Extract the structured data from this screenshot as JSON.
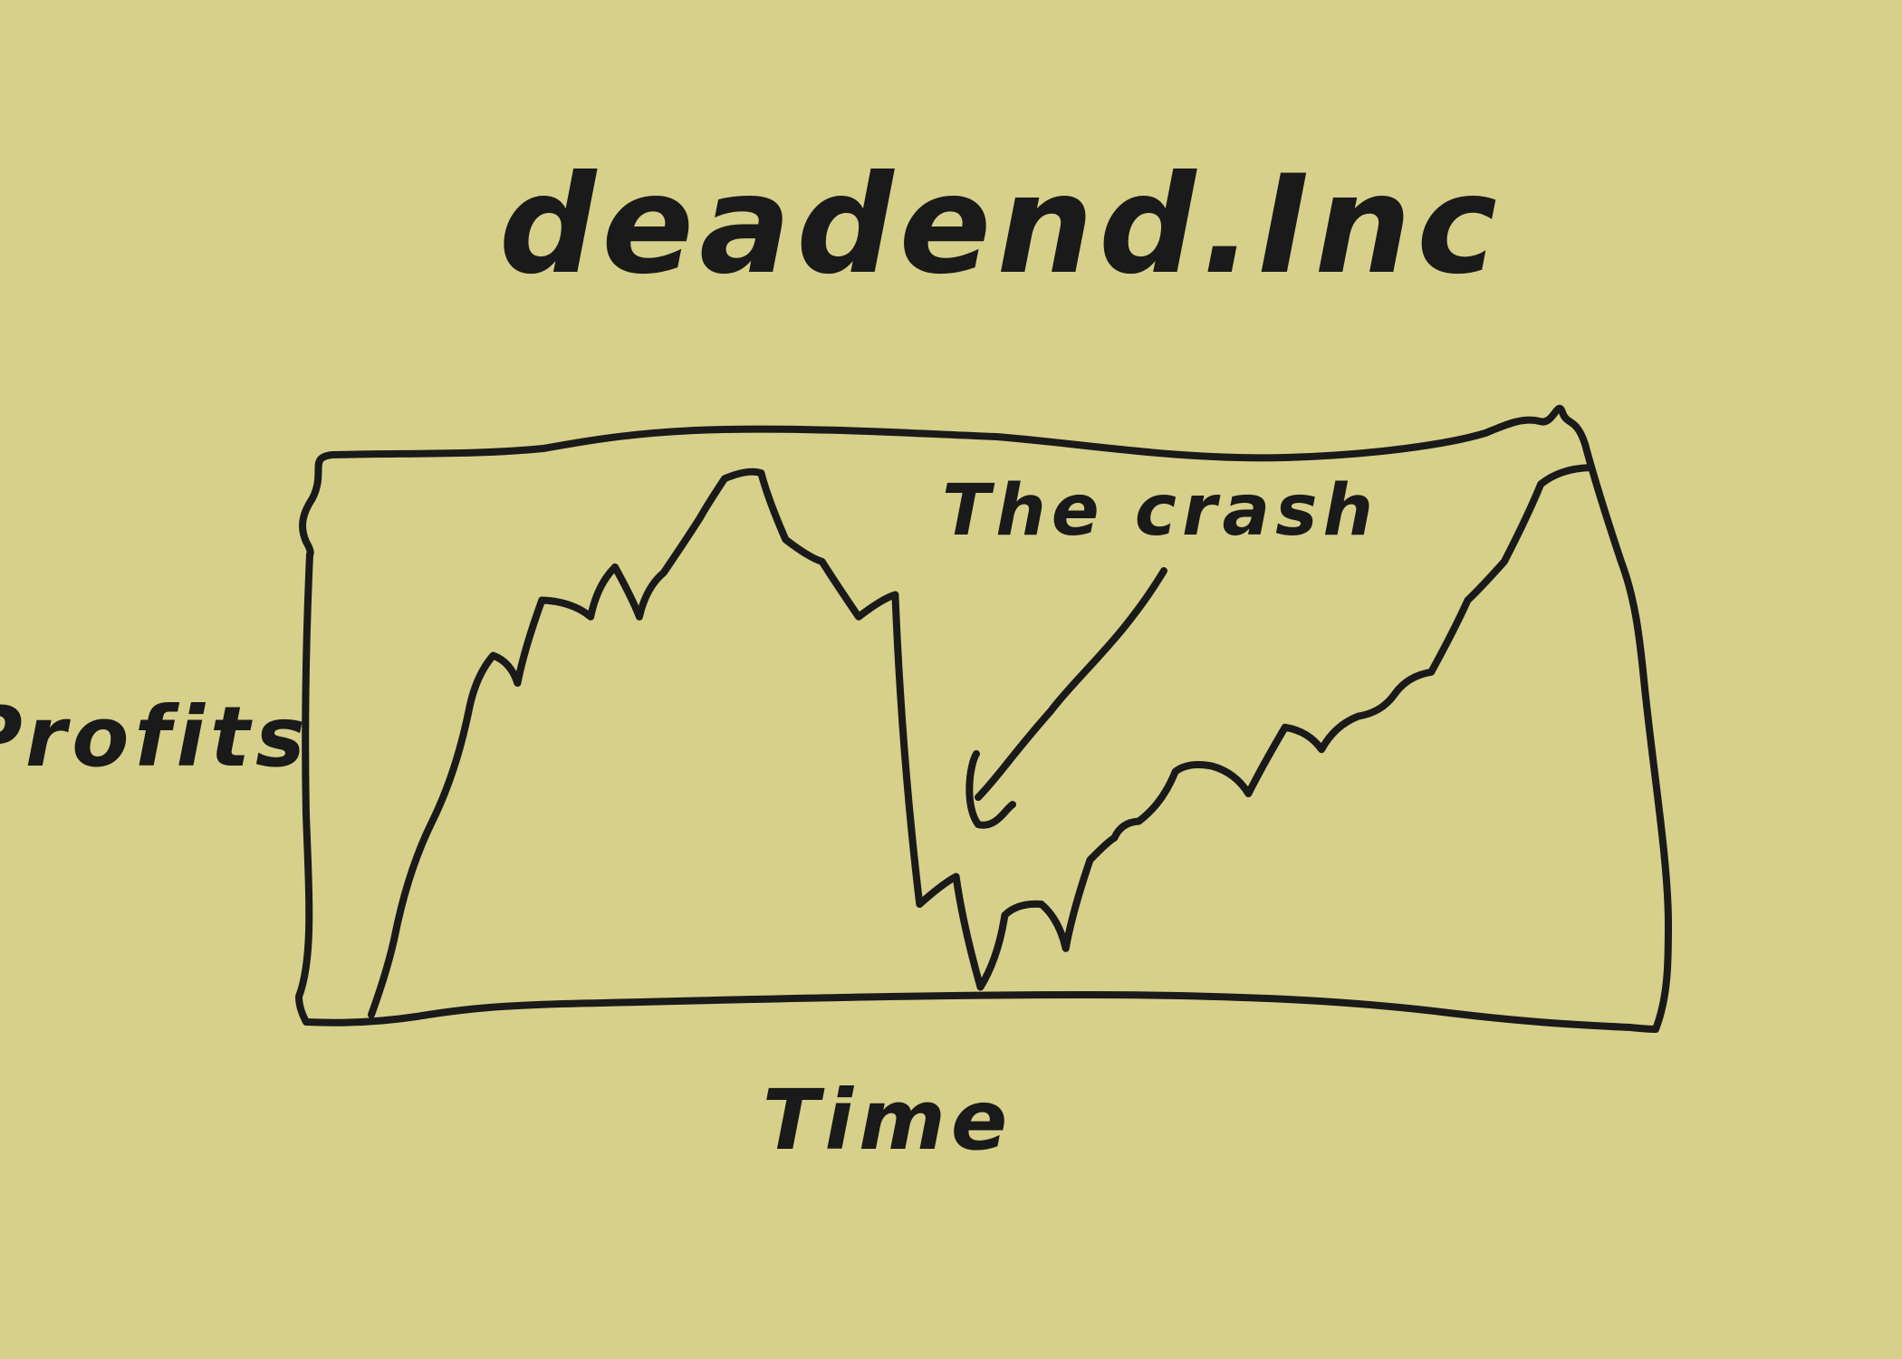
{
  "chart_data": {
    "type": "line",
    "title": "deadend.Inc",
    "xlabel": "Time",
    "ylabel": "Profits",
    "annotations": [
      {
        "text": "The crash",
        "points_to": "trough"
      }
    ],
    "grid": false,
    "x": [
      0,
      0.02,
      0.05,
      0.08,
      0.1,
      0.12,
      0.14,
      0.18,
      0.2,
      0.22,
      0.24,
      0.27,
      0.29,
      0.32,
      0.34,
      0.37,
      0.4,
      0.43,
      0.45,
      0.48,
      0.5,
      0.52,
      0.55,
      0.57,
      0.59,
      0.61,
      0.63,
      0.66,
      0.69,
      0.72,
      0.75,
      0.78,
      0.81,
      0.84,
      0.87,
      0.9,
      0.93,
      0.96,
      1.0
    ],
    "series": [
      {
        "values": [
          0.0,
          0.15,
          0.35,
          0.55,
          0.65,
          0.6,
          0.75,
          0.72,
          0.81,
          0.72,
          0.8,
          0.9,
          0.97,
          0.98,
          0.86,
          0.82,
          0.72,
          0.76,
          0.2,
          0.25,
          0.05,
          0.18,
          0.2,
          0.12,
          0.28,
          0.32,
          0.35,
          0.44,
          0.45,
          0.4,
          0.52,
          0.48,
          0.54,
          0.58,
          0.62,
          0.75,
          0.82,
          0.96,
          0.99
        ]
      }
    ]
  }
}
